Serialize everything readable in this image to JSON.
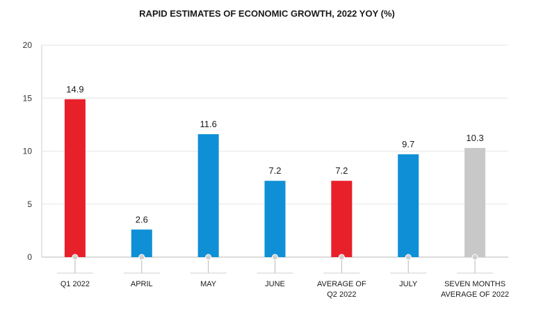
{
  "chart_data": {
    "type": "bar",
    "title": "RAPID ESTIMATES OF ECONOMIC GROWTH, 2022 YOY (%)",
    "categories": [
      [
        "Q1 2022"
      ],
      [
        "APRIL"
      ],
      [
        "MAY"
      ],
      [
        "JUNE"
      ],
      [
        "AVERAGE OF",
        "Q2 2022"
      ],
      [
        "JULY"
      ],
      [
        "SEVEN MONTHS",
        "AVERAGE OF 2022"
      ]
    ],
    "values": [
      14.9,
      2.6,
      11.6,
      7.2,
      7.2,
      9.7,
      10.3
    ],
    "value_labels": [
      "14.9",
      "2.6",
      "11.6",
      "7.2",
      "7.2",
      "9.7",
      "10.3"
    ],
    "bar_colors": [
      "#e8202a",
      "#0f8fd6",
      "#0f8fd6",
      "#0f8fd6",
      "#e8202a",
      "#0f8fd6",
      "#c8c8c8"
    ],
    "yticks": [
      "0",
      "5",
      "10",
      "15",
      "20"
    ],
    "ylim": [
      0,
      20
    ],
    "grid": true,
    "legend": "none",
    "xlabel": "",
    "ylabel": ""
  }
}
